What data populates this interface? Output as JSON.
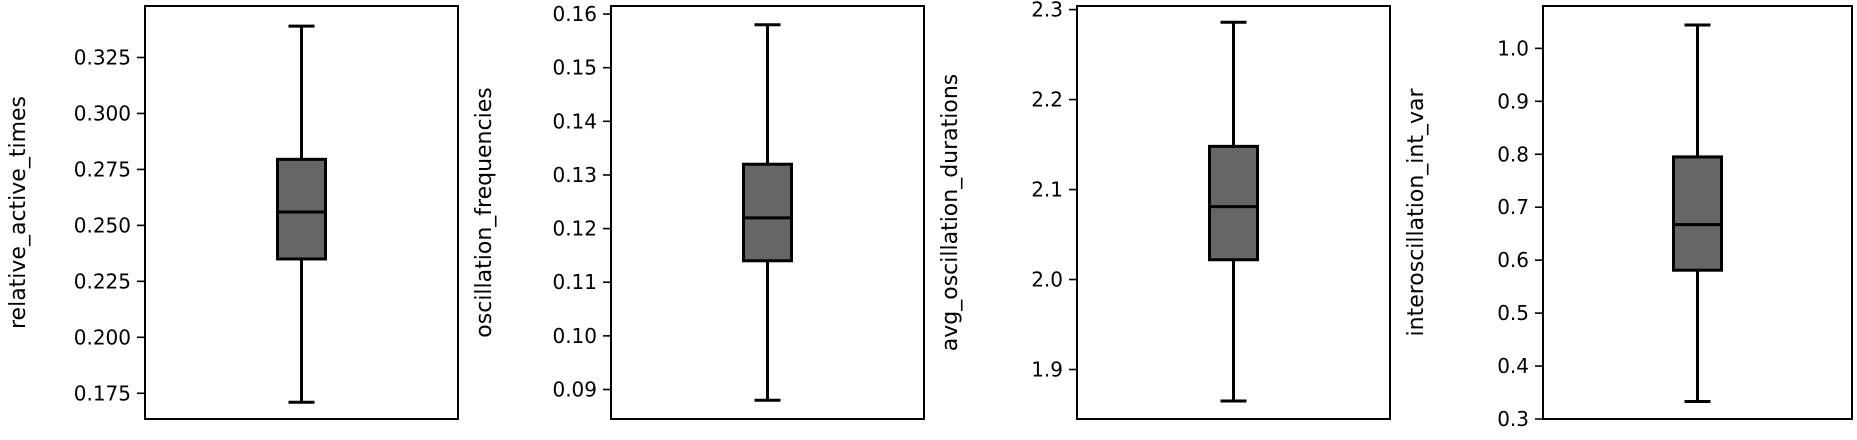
{
  "chart_data": [
    {
      "type": "box",
      "ylabel": "relative_active_times",
      "ylim": [
        0.1635,
        0.348
      ],
      "yticks": [
        0.175,
        0.2,
        0.225,
        0.25,
        0.275,
        0.3,
        0.325
      ],
      "ytick_labels": [
        "0.175",
        "0.200",
        "0.225",
        "0.250",
        "0.275",
        "0.300",
        "0.325"
      ],
      "box": {
        "whisker_low": 0.171,
        "q1": 0.235,
        "median": 0.256,
        "q3": 0.2795,
        "whisker_high": 0.339
      }
    },
    {
      "type": "box",
      "ylabel": "oscillation_frequencies",
      "ylim": [
        0.0845,
        0.1615
      ],
      "yticks": [
        0.09,
        0.1,
        0.11,
        0.12,
        0.13,
        0.14,
        0.15,
        0.16
      ],
      "ytick_labels": [
        "0.09",
        "0.10",
        "0.11",
        "0.12",
        "0.13",
        "0.14",
        "0.15",
        "0.16"
      ],
      "box": {
        "whisker_low": 0.088,
        "q1": 0.114,
        "median": 0.122,
        "q3": 0.132,
        "whisker_high": 0.158
      }
    },
    {
      "type": "box",
      "ylabel": "avg_oscillation_durations",
      "ylim": [
        1.845,
        2.304
      ],
      "yticks": [
        1.9,
        2.0,
        2.1,
        2.2,
        2.3
      ],
      "ytick_labels": [
        "1.9",
        "2.0",
        "2.1",
        "2.2",
        "2.3"
      ],
      "box": {
        "whisker_low": 1.865,
        "q1": 2.022,
        "median": 2.081,
        "q3": 2.148,
        "whisker_high": 2.286
      }
    },
    {
      "type": "box",
      "ylabel": "interoscillation_int_var",
      "ylim": [
        0.3,
        1.08
      ],
      "yticks": [
        0.3,
        0.4,
        0.5,
        0.6,
        0.7,
        0.8,
        0.9,
        1.0
      ],
      "ytick_labels": [
        "0.3",
        "0.4",
        "0.5",
        "0.6",
        "0.7",
        "0.8",
        "0.9",
        "1.0"
      ],
      "box": {
        "whisker_low": 0.333,
        "q1": 0.581,
        "median": 0.667,
        "q3": 0.795,
        "whisker_high": 1.044
      }
    }
  ],
  "colors": {
    "box_fill": "#666666",
    "line": "#000000",
    "background": "#ffffff"
  }
}
